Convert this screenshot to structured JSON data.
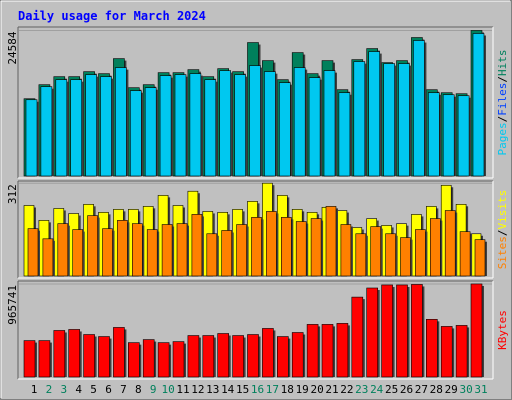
{
  "title": "Daily usage for March 2024",
  "chart_data": [
    {
      "type": "bar",
      "ylim": [
        0,
        25000
      ],
      "yticks": [
        24584
      ],
      "axis_label": {
        "parts": [
          "Pages",
          "Files",
          "Hits"
        ],
        "colors": [
          "#00c8f0",
          "#0040ff",
          "#00805c"
        ],
        "separator": "/"
      },
      "series": [
        {
          "color": "#00805c",
          "values": [
            13052,
            15425,
            16781,
            16781,
            17628,
            17289,
            19832,
            14916,
            15425,
            17459,
            17459,
            17967,
            16781,
            18137,
            17628,
            22544,
            19493,
            16272,
            20849,
            17289,
            19493,
            14577,
            19662,
            21527,
            19154,
            19493,
            23391,
            14577,
            14069,
            13899,
            24584
          ]
        },
        {
          "color": "#00c8f0",
          "values": [
            12882,
            15086,
            16272,
            16272,
            17120,
            16781,
            18306,
            14408,
            14916,
            16950,
            17120,
            17289,
            16272,
            17798,
            17120,
            18645,
            17628,
            15764,
            18306,
            16611,
            17798,
            14069,
            19323,
            21018,
            18984,
            18984,
            22883,
            14069,
            13730,
            13560,
            24069
          ]
        }
      ]
    },
    {
      "type": "bar",
      "ylim": [
        0,
        316
      ],
      "yticks": [
        312
      ],
      "axis_label": {
        "parts": [
          "Sites",
          "Visits"
        ],
        "colors": [
          "#ff8000",
          "#ffff00"
        ],
        "separator": "/"
      },
      "series": [
        {
          "color": "#ffff00",
          "values": [
            237,
            187,
            227,
            210,
            241,
            214,
            224,
            224,
            234,
            271,
            237,
            285,
            217,
            214,
            224,
            251,
            312,
            271,
            224,
            214,
            231,
            220,
            163,
            193,
            170,
            176,
            207,
            234,
            305,
            241,
            142
          ]
        },
        {
          "color": "#ff8000",
          "values": [
            159,
            125,
            176,
            156,
            203,
            159,
            187,
            176,
            156,
            173,
            176,
            207,
            142,
            153,
            173,
            197,
            217,
            197,
            183,
            193,
            234,
            173,
            142,
            166,
            142,
            129,
            156,
            193,
            220,
            149,
            122
          ]
        }
      ]
    },
    {
      "type": "bar",
      "ylim": [
        0,
        986000
      ],
      "yticks": [
        965741
      ],
      "axis_label": {
        "parts": [
          "KBytes"
        ],
        "colors": [
          "#ff0000"
        ],
        "separator": "/"
      },
      "categories": [
        "1",
        "2",
        "3",
        "4",
        "5",
        "6",
        "7",
        "8",
        "9",
        "10",
        "11",
        "12",
        "13",
        "14",
        "15",
        "16",
        "17",
        "18",
        "19",
        "20",
        "21",
        "22",
        "23",
        "24",
        "25",
        "26",
        "27",
        "28",
        "29",
        "30",
        "31"
      ],
      "category_colors": [
        "#000000",
        "#00805c",
        "#00805c",
        "#000000",
        "#000000",
        "#000000",
        "#000000",
        "#000000",
        "#00805c",
        "#00805c",
        "#000000",
        "#000000",
        "#000000",
        "#000000",
        "#000000",
        "#00805c",
        "#00805c",
        "#000000",
        "#000000",
        "#000000",
        "#000000",
        "#000000",
        "#00805c",
        "#00805c",
        "#000000",
        "#000000",
        "#000000",
        "#000000",
        "#000000",
        "#00805c",
        "#00805c"
      ],
      "series": [
        {
          "color": "#ff0000",
          "values": [
            377892,
            377892,
            482862,
            493359,
            440874,
            419880,
            514353,
            356898,
            388389,
            356898,
            367395,
            430377,
            430377,
            451371,
            430377,
            440874,
            503856,
            419880,
            461868,
            545844,
            545844,
            556341,
            829263,
            923736,
            955233,
            955233,
            960493,
            598329,
            524850,
            535347,
            965741
          ]
        }
      ]
    }
  ]
}
